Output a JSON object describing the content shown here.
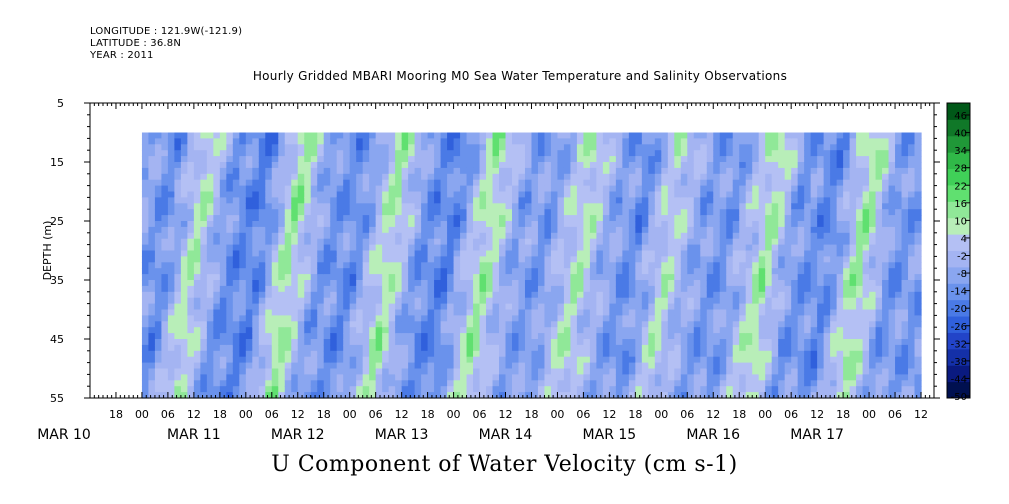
{
  "header": {
    "longitude": "LONGITUDE : 121.9W(-121.9)",
    "latitude": "LATITUDE : 36.8N",
    "year": "YEAR : 2011"
  },
  "title": "Hourly Gridded MBARI Mooring M0 Sea Water Temperature and Salinity Observations",
  "bottom_title": "U Component of Water Velocity (cm s-1)",
  "chart_data": {
    "type": "heatmap",
    "title": "Hourly Gridded MBARI Mooring M0 Sea Water Temperature and Salinity Observations",
    "xlabel": "",
    "ylabel": "DEPTH (m)",
    "y_ticks": [
      5,
      15,
      25,
      35,
      45,
      55
    ],
    "ylim": [
      5,
      55
    ],
    "y_inverted": true,
    "data_depth_range": [
      10,
      55
    ],
    "x_range_hours": [
      -12,
      183
    ],
    "x_start_hour": 0,
    "x_end_hour": 180,
    "x_hour_ticks": [
      "18",
      "00",
      "06",
      "12",
      "18",
      "00",
      "06",
      "12",
      "18",
      "00",
      "06",
      "12",
      "18",
      "00",
      "06",
      "12",
      "18",
      "00",
      "06",
      "12",
      "18",
      "00",
      "06",
      "12",
      "18",
      "00",
      "06",
      "12",
      "18",
      "00",
      "06",
      "12"
    ],
    "x_day_labels": [
      "MAR 10",
      "MAR 11",
      "MAR 12",
      "MAR 13",
      "MAR 14",
      "MAR 15",
      "MAR 16",
      "MAR 17"
    ],
    "colorbar": {
      "levels": [
        46,
        40,
        34,
        28,
        22,
        16,
        10,
        4,
        -2,
        -8,
        -14,
        -20,
        -26,
        -32,
        -38,
        -44,
        -50
      ],
      "range": [
        -50,
        52
      ],
      "colors": [
        "#001050",
        "#0a1a80",
        "#1430a8",
        "#2244c8",
        "#3060dc",
        "#4a7ae6",
        "#6a92ec",
        "#8aa6f0",
        "#a4b4f2",
        "#b4c0f4",
        "#b8eeb8",
        "#90e898",
        "#60e070",
        "#40d058",
        "#30b848",
        "#209838",
        "#107828",
        "#005818"
      ]
    },
    "temporal_pattern": [
      {
        "hour": 0,
        "value": -5
      },
      {
        "hour": 8,
        "value": -14
      },
      {
        "hour": 15,
        "value": 10
      },
      {
        "hour": 22,
        "value": -12
      },
      {
        "hour": 30,
        "value": -16
      },
      {
        "hour": 37,
        "value": 14
      },
      {
        "hour": 44,
        "value": -10
      },
      {
        "hour": 52,
        "value": -14
      },
      {
        "hour": 60,
        "value": 12
      },
      {
        "hour": 67,
        "value": -12
      },
      {
        "hour": 74,
        "value": -16
      },
      {
        "hour": 82,
        "value": 13
      },
      {
        "hour": 89,
        "value": -8
      },
      {
        "hour": 96,
        "value": -10
      },
      {
        "hour": 104,
        "value": 10
      },
      {
        "hour": 110,
        "value": -6
      },
      {
        "hour": 117,
        "value": -14
      },
      {
        "hour": 124,
        "value": 8
      },
      {
        "hour": 131,
        "value": -8
      },
      {
        "hour": 138,
        "value": -12
      },
      {
        "hour": 147,
        "value": 12
      },
      {
        "hour": 153,
        "value": -10
      },
      {
        "hour": 162,
        "value": -14
      },
      {
        "hour": 169,
        "value": 14
      },
      {
        "hour": 176,
        "value": -12
      },
      {
        "hour": 180,
        "value": -10
      }
    ]
  }
}
